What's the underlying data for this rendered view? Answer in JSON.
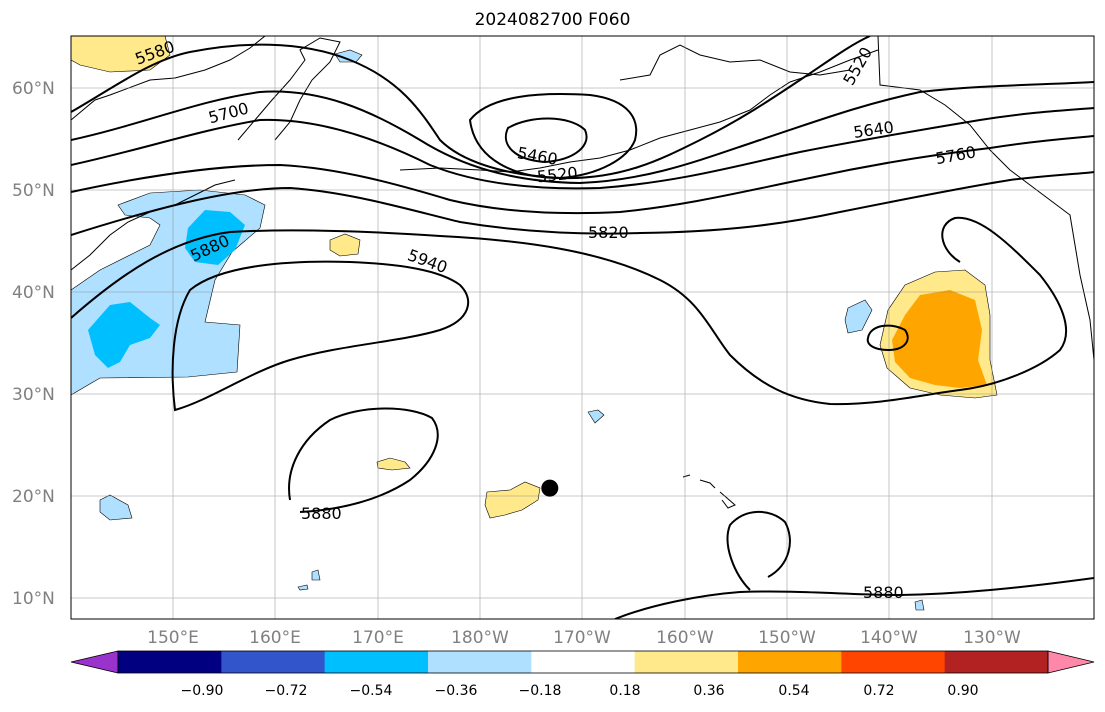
{
  "title": "2024082700 F060",
  "map": {
    "projection": "PlateCarree",
    "lon_range_degE": [
      140,
      240
    ],
    "lat_range_degN": [
      8,
      65
    ],
    "gridlines": true,
    "lat_labels": [
      "10°N",
      "20°N",
      "30°N",
      "40°N",
      "50°N",
      "60°N"
    ],
    "lon_labels": [
      "150°E",
      "160°E",
      "170°E",
      "180°W",
      "170°W",
      "160°W",
      "150°W",
      "140°W",
      "130°W"
    ],
    "marker": {
      "lon_degE": 186.8,
      "lat_degN": 20.8,
      "color": "#000000"
    }
  },
  "contour_labels": [
    "5580",
    "5700",
    "5460",
    "5520",
    "5520",
    "5640",
    "5760",
    "5820",
    "5880",
    "5940",
    "5880",
    "5880"
  ],
  "colorbar": {
    "tick_labels": [
      "−0.90",
      "−0.72",
      "−0.54",
      "−0.36",
      "−0.18",
      "0.18",
      "0.36",
      "0.54",
      "0.72",
      "0.90"
    ],
    "colors": [
      "#9933cc",
      "#000080",
      "#3355cc",
      "#00bfff",
      "#b0e0ff",
      "#ffffff",
      "#ffe98a",
      "#ffa500",
      "#ff4500",
      "#b22222",
      "#ff88aa"
    ],
    "extend": "both"
  }
}
